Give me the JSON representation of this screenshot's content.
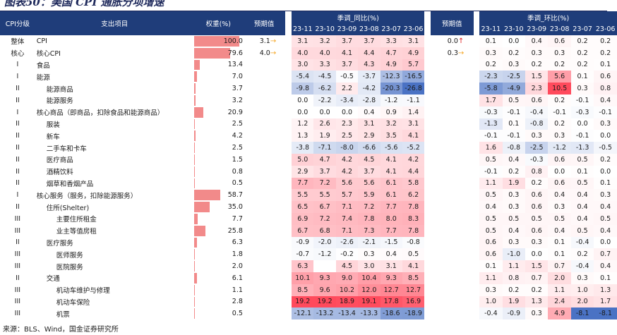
{
  "title": "图表50：美国 CPI 通胀分项增速",
  "source": "来源：BLS、Wind，国金证券研究所",
  "header": {
    "level": "CPI分级",
    "item": "支出项目",
    "weight": "权重(%)",
    "expected_yoy": "预期值",
    "yoy_group": "季调_同比(%)",
    "expected_mom": "预期值",
    "mom_group": "季调_环比(%)"
  },
  "months": [
    "23-11",
    "23-10",
    "23-09",
    "23-08",
    "23-07",
    "23-06"
  ],
  "colors": {
    "header_bg": "#1f3d7a",
    "weight_bar": "#f28a8a",
    "arrow_up": "#e02020",
    "arrow_right": "#f5a623",
    "high": "#e8455a",
    "low": "#4a72c4"
  },
  "rows": [
    {
      "level": "整体",
      "item": "CPI",
      "weight": "100.0",
      "weight_pct": 100,
      "exp_yoy": "3.1",
      "exp_yoy_arrow": "→",
      "yoy": [
        "3.1",
        "3.2",
        "3.7",
        "3.7",
        "3.3",
        "3.1"
      ],
      "exp_mom": "0.0",
      "exp_mom_arrow": "↑",
      "mom": [
        "0.1",
        "0.0",
        "0.4",
        "0.6",
        "0.2",
        "0.2"
      ]
    },
    {
      "level": "核心",
      "item": "核心CPI",
      "weight": "79.6",
      "weight_pct": 79.6,
      "exp_yoy": "4.0",
      "exp_yoy_arrow": "→",
      "yoy": [
        "4.0",
        "4.0",
        "4.1",
        "4.4",
        "4.7",
        "4.9"
      ],
      "exp_mom": "0.3",
      "exp_mom_arrow": "→",
      "mom": [
        "0.3",
        "0.2",
        "0.3",
        "0.3",
        "0.2",
        "0.2"
      ]
    },
    {
      "level": "I",
      "item": "食品",
      "weight": "13.4",
      "weight_pct": 13.4,
      "exp_yoy": "",
      "exp_yoy_arrow": "",
      "yoy": [
        "3.0",
        "3.3",
        "3.7",
        "4.3",
        "4.9",
        "5.7"
      ],
      "exp_mom": "",
      "exp_mom_arrow": "",
      "mom": [
        "0.2",
        "0.3",
        "0.2",
        "0.2",
        "0.2",
        "0.1"
      ]
    },
    {
      "level": "I",
      "item": "能源",
      "weight": "7.0",
      "weight_pct": 7.0,
      "exp_yoy": "",
      "exp_yoy_arrow": "",
      "yoy": [
        "-5.4",
        "-4.5",
        "-0.5",
        "-3.7",
        "-12.3",
        "-16.5"
      ],
      "exp_mom": "",
      "exp_mom_arrow": "",
      "mom": [
        "-2.3",
        "-2.5",
        "1.5",
        "5.6",
        "0.1",
        "0.6"
      ]
    },
    {
      "level": "II",
      "item": "能源商品",
      "indent": 1,
      "weight": "3.7",
      "weight_pct": 3.7,
      "exp_yoy": "",
      "exp_yoy_arrow": "",
      "yoy": [
        "-9.8",
        "-6.2",
        "2.2",
        "-4.2",
        "-20.3",
        "-26.8"
      ],
      "exp_mom": "",
      "exp_mom_arrow": "",
      "mom": [
        "-5.8",
        "-4.9",
        "2.3",
        "10.5",
        "0.3",
        "0.8"
      ]
    },
    {
      "level": "II",
      "item": "能源服务",
      "indent": 1,
      "weight": "3.2",
      "weight_pct": 3.2,
      "exp_yoy": "",
      "exp_yoy_arrow": "",
      "yoy": [
        "0.0",
        "-2.2",
        "-3.4",
        "-2.8",
        "-1.2",
        "-1.1"
      ],
      "exp_mom": "",
      "exp_mom_arrow": "",
      "mom": [
        "1.7",
        "0.5",
        "0.6",
        "0.2",
        "-0.1",
        "0.4"
      ]
    },
    {
      "level": "I",
      "item": "核心商品（即商品，扣除食品和能源商品）",
      "weight": "20.9",
      "weight_pct": 20.9,
      "exp_yoy": "",
      "exp_yoy_arrow": "",
      "yoy": [
        "0.0",
        "0.0",
        "0.0",
        "0.4",
        "0.9",
        "1.4"
      ],
      "exp_mom": "",
      "exp_mom_arrow": "",
      "mom": [
        "-0.3",
        "-0.1",
        "-0.4",
        "-0.1",
        "-0.3",
        "-0.1"
      ]
    },
    {
      "level": "II",
      "item": "服装",
      "indent": 1,
      "weight": "2.5",
      "weight_pct": 2.5,
      "exp_yoy": "",
      "exp_yoy_arrow": "",
      "yoy": [
        "1.2",
        "2.6",
        "2.3",
        "3.1",
        "3.2",
        "3.1"
      ],
      "exp_mom": "",
      "exp_mom_arrow": "",
      "mom": [
        "-1.3",
        "0.1",
        "-0.8",
        "0.2",
        "0.0",
        "0.3"
      ]
    },
    {
      "level": "II",
      "item": "新车",
      "indent": 1,
      "weight": "4.2",
      "weight_pct": 4.2,
      "exp_yoy": "",
      "exp_yoy_arrow": "",
      "yoy": [
        "1.3",
        "1.9",
        "2.5",
        "2.9",
        "3.5",
        "4.1"
      ],
      "exp_mom": "",
      "exp_mom_arrow": "",
      "mom": [
        "-0.1",
        "-0.1",
        "0.3",
        "0.3",
        "-0.1",
        "0.0"
      ]
    },
    {
      "level": "II",
      "item": "二手车和卡车",
      "indent": 1,
      "weight": "2.5",
      "weight_pct": 2.5,
      "exp_yoy": "",
      "exp_yoy_arrow": "",
      "yoy": [
        "-3.8",
        "-7.1",
        "-8.0",
        "-6.6",
        "-5.6",
        "-5.2"
      ],
      "exp_mom": "",
      "exp_mom_arrow": "",
      "mom": [
        "1.6",
        "-0.8",
        "-2.5",
        "-1.2",
        "-1.3",
        "-0.5"
      ]
    },
    {
      "level": "II",
      "item": "医疗商品",
      "indent": 1,
      "weight": "1.5",
      "weight_pct": 1.5,
      "exp_yoy": "",
      "exp_yoy_arrow": "",
      "yoy": [
        "5.0",
        "4.7",
        "4.2",
        "4.5",
        "4.1",
        "4.2"
      ],
      "exp_mom": "",
      "exp_mom_arrow": "",
      "mom": [
        "0.5",
        "0.4",
        "-0.3",
        "0.6",
        "0.5",
        "0.2"
      ]
    },
    {
      "level": "II",
      "item": "酒精饮料",
      "indent": 1,
      "weight": "0.8",
      "weight_pct": 0.8,
      "exp_yoy": "",
      "exp_yoy_arrow": "",
      "yoy": [
        "2.9",
        "3.7",
        "4.2",
        "3.7",
        "4.1",
        "4.4"
      ],
      "exp_mom": "",
      "exp_mom_arrow": "",
      "mom": [
        "-0.1",
        "0.2",
        "0.8",
        "0.0",
        "0.1",
        "0.0"
      ]
    },
    {
      "level": "II",
      "item": "烟草和香烟产品",
      "indent": 1,
      "weight": "0.5",
      "weight_pct": 0.5,
      "exp_yoy": "",
      "exp_yoy_arrow": "",
      "yoy": [
        "7.7",
        "7.2",
        "5.6",
        "5.6",
        "6.1",
        "5.8"
      ],
      "exp_mom": "",
      "exp_mom_arrow": "",
      "mom": [
        "1.1",
        "1.9",
        "0.2",
        "0.6",
        "0.5",
        "0.1"
      ]
    },
    {
      "level": "I",
      "item": "核心服务（服务，扣除能源服务）",
      "weight": "58.7",
      "weight_pct": 58.7,
      "exp_yoy": "",
      "exp_yoy_arrow": "",
      "yoy": [
        "5.5",
        "5.5",
        "5.7",
        "5.9",
        "6.1",
        "6.2"
      ],
      "exp_mom": "",
      "exp_mom_arrow": "",
      "mom": [
        "0.5",
        "0.3",
        "0.6",
        "0.4",
        "0.4",
        "0.3"
      ]
    },
    {
      "level": "II",
      "item": "住所(Shelter)",
      "indent": 1,
      "weight": "35.0",
      "weight_pct": 35.0,
      "exp_yoy": "",
      "exp_yoy_arrow": "",
      "yoy": [
        "6.5",
        "6.7",
        "7.1",
        "7.2",
        "7.7",
        "7.8"
      ],
      "exp_mom": "",
      "exp_mom_arrow": "",
      "mom": [
        "0.4",
        "0.3",
        "0.6",
        "0.3",
        "0.4",
        "0.4"
      ]
    },
    {
      "level": "III",
      "item": "主要住所租金",
      "indent": 2,
      "weight": "7.7",
      "weight_pct": 7.7,
      "exp_yoy": "",
      "exp_yoy_arrow": "",
      "yoy": [
        "6.9",
        "7.2",
        "7.4",
        "7.8",
        "8.0",
        "8.3"
      ],
      "exp_mom": "",
      "exp_mom_arrow": "",
      "mom": [
        "0.5",
        "0.5",
        "0.5",
        "0.5",
        "0.4",
        "0.5"
      ]
    },
    {
      "level": "III",
      "item": "业主等值房租",
      "indent": 2,
      "weight": "25.8",
      "weight_pct": 25.8,
      "exp_yoy": "",
      "exp_yoy_arrow": "",
      "yoy": [
        "6.7",
        "6.8",
        "7.1",
        "7.3",
        "7.7",
        "7.8"
      ],
      "exp_mom": "",
      "exp_mom_arrow": "",
      "mom": [
        "0.5",
        "0.4",
        "0.6",
        "0.4",
        "0.5",
        "0.4"
      ]
    },
    {
      "level": "II",
      "item": "医疗服务",
      "indent": 1,
      "weight": "6.3",
      "weight_pct": 6.3,
      "exp_yoy": "",
      "exp_yoy_arrow": "",
      "yoy": [
        "-0.9",
        "-2.0",
        "-2.6",
        "-2.1",
        "-1.5",
        "-0.8"
      ],
      "exp_mom": "",
      "exp_mom_arrow": "",
      "mom": [
        "0.6",
        "0.3",
        "0.3",
        "0.1",
        "-0.4",
        "0.0"
      ]
    },
    {
      "level": "III",
      "item": "医师服务",
      "indent": 2,
      "weight": "1.8",
      "weight_pct": 1.8,
      "exp_yoy": "",
      "exp_yoy_arrow": "",
      "yoy": [
        "-0.7",
        "-1.2",
        "-0.2",
        "0.3",
        "0.4",
        "0.5"
      ],
      "exp_mom": "",
      "exp_mom_arrow": "",
      "mom": [
        "0.6",
        "-1.0",
        "0.0",
        "0.1",
        "0.2",
        "0.7"
      ]
    },
    {
      "level": "III",
      "item": "医院服务",
      "indent": 2,
      "weight": "2.0",
      "weight_pct": 2.0,
      "exp_yoy": "",
      "exp_yoy_arrow": "",
      "yoy": [
        "6.3",
        "",
        "4.5",
        "3.0",
        "3.1",
        "4.1"
      ],
      "exp_mom": "",
      "exp_mom_arrow": "",
      "mom": [
        "0.1",
        "1.1",
        "1.5",
        "0.7",
        "-0.4",
        "0.4"
      ]
    },
    {
      "level": "II",
      "item": "交通",
      "indent": 1,
      "weight": "6.1",
      "weight_pct": 6.1,
      "exp_yoy": "",
      "exp_yoy_arrow": "",
      "yoy": [
        "10.1",
        "9.3",
        "9.0",
        "10.4",
        "9.3",
        "8.5"
      ],
      "exp_mom": "",
      "exp_mom_arrow": "",
      "mom": [
        "1.1",
        "0.8",
        "0.7",
        "2.0",
        "0.3",
        "0.1"
      ]
    },
    {
      "level": "III",
      "item": "机动车维护与修理",
      "indent": 2,
      "weight": "1.1",
      "weight_pct": 1.1,
      "exp_yoy": "",
      "exp_yoy_arrow": "",
      "yoy": [
        "8.5",
        "9.6",
        "10.2",
        "12.0",
        "12.7",
        "12.7"
      ],
      "exp_mom": "",
      "exp_mom_arrow": "",
      "mom": [
        "0.3",
        "0.2",
        "0.2",
        "1.1",
        "1.0",
        "1.3"
      ]
    },
    {
      "level": "III",
      "item": "机动车保险",
      "indent": 2,
      "weight": "2.8",
      "weight_pct": 2.8,
      "exp_yoy": "",
      "exp_yoy_arrow": "",
      "yoy": [
        "19.2",
        "19.2",
        "18.9",
        "19.1",
        "17.8",
        "16.9"
      ],
      "exp_mom": "",
      "exp_mom_arrow": "",
      "mom": [
        "1.0",
        "1.9",
        "1.3",
        "2.4",
        "2.0",
        "1.7"
      ]
    },
    {
      "level": "III",
      "item": "机票",
      "indent": 2,
      "weight": "0.5",
      "weight_pct": 0.5,
      "exp_yoy": "",
      "exp_yoy_arrow": "",
      "yoy": [
        "-12.1",
        "-13.2",
        "-13.4",
        "-13.3",
        "-18.6",
        "-18.9"
      ],
      "exp_mom": "",
      "exp_mom_arrow": "",
      "mom": [
        "-0.4",
        "-0.9",
        "0.3",
        "4.9",
        "-8.1",
        "-8.1"
      ]
    }
  ]
}
